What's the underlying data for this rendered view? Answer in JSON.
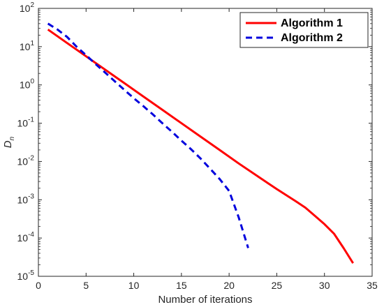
{
  "chart_data": {
    "type": "line",
    "xlabel": "Number of iterations",
    "ylabel": "D",
    "ylabel_subscript": "n",
    "xlim": [
      0,
      35
    ],
    "ylim": [
      1e-05,
      100
    ],
    "yscale": "log",
    "x_ticks": [
      0,
      5,
      10,
      15,
      20,
      25,
      30,
      35
    ],
    "y_ticks": [
      {
        "value": 1e-05,
        "base": "10",
        "exp": "-5"
      },
      {
        "value": 0.0001,
        "base": "10",
        "exp": "-4"
      },
      {
        "value": 0.001,
        "base": "10",
        "exp": "-3"
      },
      {
        "value": 0.01,
        "base": "10",
        "exp": "-2"
      },
      {
        "value": 0.1,
        "base": "10",
        "exp": "-1"
      },
      {
        "value": 1,
        "base": "10",
        "exp": "0"
      },
      {
        "value": 10,
        "base": "10",
        "exp": "1"
      },
      {
        "value": 100,
        "base": "10",
        "exp": "2"
      }
    ],
    "grid": false,
    "legend_position": "top-right",
    "series": [
      {
        "name": "Algorithm 1",
        "color": "#ff0000",
        "style": "solid",
        "x": [
          1,
          3,
          5,
          7,
          9,
          11,
          13,
          15,
          17,
          19,
          21,
          23,
          25,
          27,
          28,
          29,
          30,
          31,
          32,
          33
        ],
        "y": [
          28,
          12.5,
          5.6,
          2.5,
          1.12,
          0.5,
          0.224,
          0.1,
          0.0447,
          0.02,
          0.0089,
          0.0041,
          0.0019,
          0.00091,
          0.00062,
          0.00038,
          0.00023,
          0.00013,
          5.5e-05,
          2.2e-05
        ]
      },
      {
        "name": "Algorithm 2",
        "color": "#0000dd",
        "style": "dashed",
        "x": [
          1,
          2,
          3,
          4,
          5,
          6,
          7,
          8,
          9,
          10,
          11,
          12,
          13,
          14,
          15,
          16,
          17,
          18,
          19,
          20,
          21,
          22
        ],
        "y": [
          40,
          28,
          18,
          10,
          6,
          3.5,
          2.1,
          1.25,
          0.75,
          0.45,
          0.28,
          0.17,
          0.1,
          0.06,
          0.035,
          0.021,
          0.012,
          0.0065,
          0.0035,
          0.0017,
          0.00035,
          5.5e-05
        ]
      }
    ]
  }
}
